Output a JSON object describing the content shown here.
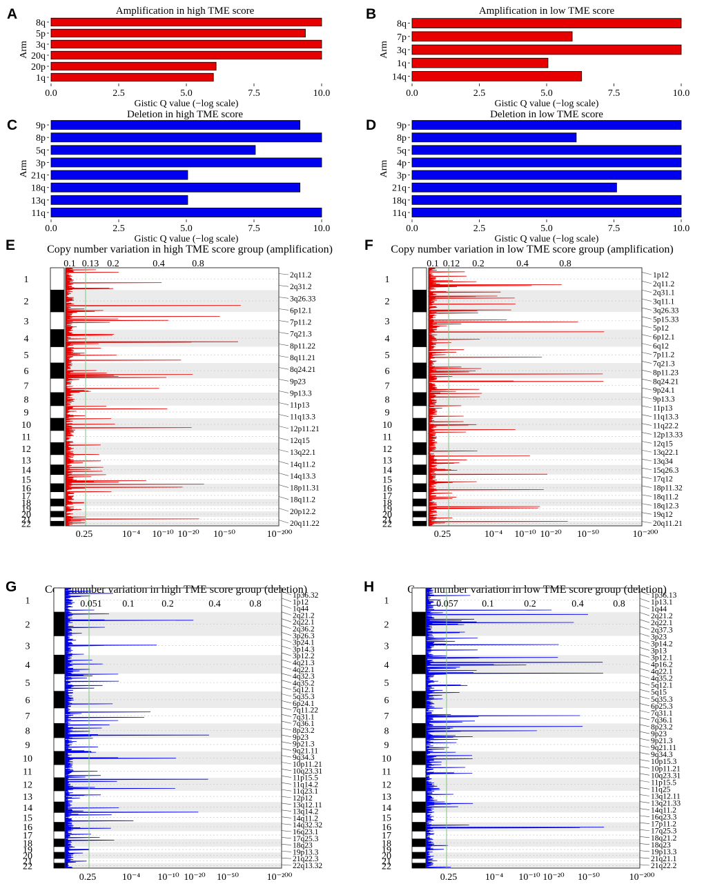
{
  "colors": {
    "amplification": "#e60000",
    "deletion": "#0000ee",
    "threshold": "#7cc47c",
    "band": "#ebebeb"
  },
  "chart_data": [
    {
      "panel": "A",
      "type": "bar",
      "orientation": "horizontal",
      "title": "Amplification in high TME score",
      "ylabel": "Arm",
      "xlabel": "Gistic Q value (−log scale)",
      "xlim": [
        0,
        10
      ],
      "xticks": [
        "0.0",
        "2.5",
        "5.0",
        "7.5",
        "10.0"
      ],
      "categories": [
        "8q",
        "5p",
        "3q",
        "20q",
        "20p",
        "1q"
      ],
      "values": [
        10.0,
        9.4,
        10.0,
        10.0,
        6.1,
        6.0
      ]
    },
    {
      "panel": "B",
      "type": "bar",
      "orientation": "horizontal",
      "title": "Amplification in low TME score",
      "ylabel": "Arm",
      "xlabel": "Gistic Q value (−log scale)",
      "xlim": [
        0,
        10
      ],
      "xticks": [
        "0.0",
        "2.5",
        "5.0",
        "7.5",
        "10.0"
      ],
      "categories": [
        "8q",
        "7p",
        "3q",
        "1q",
        "14q"
      ],
      "values": [
        10.0,
        5.95,
        10.0,
        5.05,
        6.3
      ]
    },
    {
      "panel": "C",
      "type": "bar",
      "orientation": "horizontal",
      "title": "Deletion in high TME score",
      "ylabel": "Arm",
      "xlabel": "Gistic Q value (−log scale)",
      "xlim": [
        0,
        10
      ],
      "xticks": [
        "0.0",
        "2.5",
        "5.0",
        "7.5",
        "10.0"
      ],
      "categories": [
        "9p",
        "8p",
        "5q",
        "3p",
        "21q",
        "18q",
        "13q",
        "11q"
      ],
      "values": [
        9.2,
        10.0,
        7.55,
        10.0,
        5.05,
        9.2,
        5.05,
        10.0
      ]
    },
    {
      "panel": "D",
      "type": "bar",
      "orientation": "horizontal",
      "title": "Deletion in low TME score",
      "ylabel": "Arm",
      "xlabel": "Gistic Q value (−log scale)",
      "xlim": [
        0,
        10
      ],
      "xticks": [
        "0.0",
        "2.5",
        "5.0",
        "7.5",
        "10.0"
      ],
      "categories": [
        "9p",
        "8p",
        "5q",
        "4p",
        "3p",
        "21q",
        "18q",
        "11q"
      ],
      "values": [
        10.0,
        6.1,
        10.0,
        10.0,
        10.0,
        7.6,
        10.0,
        10.0
      ]
    },
    {
      "panel": "E",
      "type": "line",
      "kind": "gistic-genome",
      "mode": "amplification",
      "title": "Copy number variation in high TME score group (amplification)",
      "top_ticks": [
        "0.1",
        "0.13",
        "0.2",
        "0.4",
        "0.8"
      ],
      "bottom_ticks": [
        "0.25",
        "10⁻⁴",
        "10⁻¹⁰",
        "10⁻²⁰",
        "10⁻⁵⁰",
        "10⁻²⁰⁰"
      ],
      "chromosomes": [
        "1",
        "2",
        "3",
        "4",
        "5",
        "6",
        "7",
        "8",
        "9",
        "10",
        "11",
        "12",
        "13",
        "14",
        "15",
        "16",
        "17",
        "18",
        "19",
        "20",
        "21",
        "22"
      ],
      "peaks": [
        "2q11.2",
        "2q31.2",
        "3q26.33",
        "6p12.1",
        "7p11.2",
        "7q21.3",
        "8p11.22",
        "8q11.21",
        "8q24.21",
        "9p23",
        "9p13.3",
        "11p13",
        "11q13.3",
        "12p11.21",
        "12q15",
        "13q22.1",
        "14q11.2",
        "14q13.3",
        "18p11.31",
        "18q11.2",
        "20p12.2",
        "20q11.22"
      ]
    },
    {
      "panel": "F",
      "type": "line",
      "kind": "gistic-genome",
      "mode": "amplification",
      "title": "Copy number variation in  low TME score group (amplification)",
      "top_ticks": [
        "0.1",
        "0.12",
        "0.2",
        "0.4",
        "0.8"
      ],
      "bottom_ticks": [
        "0.25",
        "10⁻⁴",
        "10⁻¹⁰",
        "10⁻²⁰",
        "10⁻⁵⁰",
        "10⁻²⁰⁰"
      ],
      "chromosomes": [
        "1",
        "2",
        "3",
        "4",
        "5",
        "6",
        "7",
        "8",
        "9",
        "10",
        "11",
        "12",
        "13",
        "14",
        "15",
        "16",
        "17",
        "18",
        "19",
        "20",
        "21",
        "22"
      ],
      "peaks": [
        "1p12",
        "2q11.2",
        "2q31.1",
        "3q11.1",
        "3q26.33",
        "5p15.33",
        "5p12",
        "6p12.1",
        "6q12",
        "7p11.2",
        "7q21.3",
        "8p11.23",
        "8q24.21",
        "9p24.1",
        "9p13.3",
        "11p13",
        "11q13.3",
        "11q22.2",
        "12p13.33",
        "12q15",
        "13q22.1",
        "13q34",
        "15q26.3",
        "17q12",
        "18p11.32",
        "18q11.2",
        "18q12.3",
        "19q12",
        "20q11.21"
      ]
    },
    {
      "panel": "G",
      "type": "line",
      "kind": "gistic-genome",
      "mode": "deletion",
      "title": "Copy number variation in high TME score group (deletion)",
      "top_ticks": [
        "0.051",
        "0.1",
        "0.2",
        "0.4",
        "0.8"
      ],
      "bottom_ticks": [
        "0.25",
        "10⁻⁴",
        "10⁻¹⁰",
        "10⁻²⁰",
        "10⁻⁵⁰",
        "10⁻²⁰⁰"
      ],
      "chromosomes": [
        "1",
        "2",
        "3",
        "4",
        "5",
        "6",
        "7",
        "8",
        "9",
        "10",
        "11",
        "12",
        "13",
        "14",
        "15",
        "16",
        "17",
        "18",
        "19",
        "20",
        "21",
        "22"
      ],
      "peaks": [
        "1p36.32",
        "1p12",
        "1q44",
        "2q21.2",
        "2q22.1",
        "2q36.2",
        "3p26.3",
        "3p24.1",
        "3p14.3",
        "3p12.2",
        "4q21.3",
        "4q22.1",
        "4q32.3",
        "4q35.2",
        "5q12.1",
        "5q35.3",
        "6p24.1",
        "7q11.22",
        "7q31.1",
        "7q36.1",
        "8p23.2",
        "9p23",
        "9p21.3",
        "9q21.11",
        "9q34.3",
        "10p11.21",
        "10q23.31",
        "11p15.5",
        "11q14.2",
        "11q23.1",
        "12p12",
        "13q12.11",
        "13q14.2",
        "14q11.2",
        "14q32.32",
        "16q23.1",
        "17q25.3",
        "18q23",
        "19p13.3",
        "21q22.3",
        "22q13.32"
      ]
    },
    {
      "panel": "H",
      "type": "line",
      "kind": "gistic-genome",
      "mode": "deletion",
      "title": "Copy number variation in  low TME score group (deletion)",
      "top_ticks": [
        "0.057",
        "0.1",
        "0.2",
        "0.4",
        "0.8"
      ],
      "bottom_ticks": [
        "0.25",
        "10⁻⁴",
        "10⁻¹⁰",
        "10⁻²⁰",
        "10⁻⁵⁰",
        "10⁻²⁰⁰"
      ],
      "chromosomes": [
        "1",
        "2",
        "3",
        "4",
        "5",
        "6",
        "7",
        "8",
        "9",
        "10",
        "11",
        "12",
        "13",
        "14",
        "15",
        "16",
        "17",
        "18",
        "19",
        "20",
        "21",
        "22"
      ],
      "peaks": [
        "1p36.13",
        "1p13.1",
        "1q44",
        "2q21.2",
        "2q22.1",
        "2q37.3",
        "3p23",
        "3p14.2",
        "3p13",
        "3p12.1",
        "4p16.2",
        "4q22.1",
        "4q35.2",
        "5q12.1",
        "5q15",
        "5q35.3",
        "6p25.3",
        "7q31.1",
        "7q36.1",
        "8p23.2",
        "9p23",
        "9p21.3",
        "9q21.11",
        "9q34.3",
        "10p15.3",
        "10p11.21",
        "10q23.31",
        "11p15.5",
        "11q25",
        "13q12.11",
        "13q21.33",
        "14q11.2",
        "16q23.3",
        "17p11.2",
        "17q25.3",
        "18q21.2",
        "18q23",
        "19p13.3",
        "21q21.1",
        "21q22.2"
      ]
    }
  ]
}
